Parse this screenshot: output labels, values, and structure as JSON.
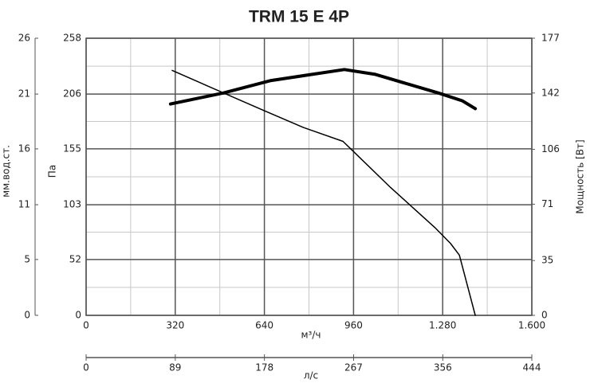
{
  "chart_data": {
    "type": "line",
    "title": "TRM 15 E 4P",
    "xlabel": "м³/ч",
    "ylabel": "Па",
    "y2label": "Мощность [Вт]",
    "y3label": "мм.вод.ст.",
    "x2label": "л/с",
    "xlim": [
      0,
      1600
    ],
    "xticks": [
      0,
      320,
      640,
      960,
      {
        "value": 1280,
        "label": "1.280"
      },
      {
        "value": 1600,
        "label": "1.600"
      }
    ],
    "ylim": [
      0,
      258
    ],
    "yticks": [
      0,
      52,
      103,
      155,
      206,
      258
    ],
    "y2lim": [
      0,
      177
    ],
    "y2ticks": [
      0,
      35,
      71,
      106,
      142,
      177
    ],
    "y3lim": [
      0,
      26.3
    ],
    "y3ticks": [
      0,
      {
        "value": 5.3,
        "label": "5"
      },
      {
        "value": 10.5,
        "label": "11"
      },
      {
        "value": 15.8,
        "label": "16"
      },
      21,
      {
        "value": 26.3,
        "label": "26"
      }
    ],
    "x2lim": [
      0,
      444.4
    ],
    "x2ticks": [
      0,
      {
        "value": 88.9,
        "label": "89"
      },
      {
        "value": 177.8,
        "label": "178"
      },
      {
        "value": 266.7,
        "label": "267"
      },
      {
        "value": 355.6,
        "label": "356"
      },
      {
        "value": 444.4,
        "label": "444"
      }
    ],
    "grid": true,
    "minor_grid": true,
    "series": [
      {
        "color": "#000000",
        "width": 1.5,
        "x": [
          309,
          635,
          779,
          922,
          950,
          1093,
          1251,
          1308,
          1340,
          1397
        ],
        "values": [
          228,
          191,
          175,
          162,
          155,
          119,
          82,
          67,
          56,
          0
        ]
      },
      {
        "color": "#000000",
        "width": 4,
        "axis": "y2",
        "x": [
          303,
          492,
          664,
          927,
          1036,
          1265,
          1351,
          1397
        ],
        "values": [
          135,
          142,
          150,
          157,
          154,
          142,
          137,
          132
        ]
      }
    ]
  }
}
